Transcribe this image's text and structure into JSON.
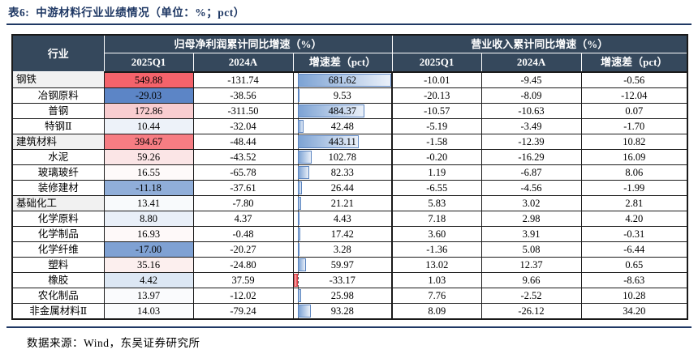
{
  "title": {
    "label": "表6:",
    "text": "中游材料行业业绩情况（单位：%；pct）"
  },
  "source": "数据来源：Wind，东吴证券研究所",
  "colors": {
    "header_bg": "#35485C",
    "accent_navy": "#1F3864",
    "parent_row_bg": "#F1F1F1",
    "bar_positive_start": "#7DA3D4",
    "bar_positive_end": "#EAF0F9",
    "bar_positive_border": "#5C85C0",
    "bar_negative_solid": "#E9494F",
    "bar_negative_border": "#D93A41",
    "heat_max_red": "#F4636B",
    "heat_min_blue": "#5C85C6"
  },
  "table": {
    "col_industry": "行业",
    "group1": "归母净利润累计同比增速（%）",
    "group2": "营业收入累计同比增速（%）",
    "subheaders": [
      "2025Q1",
      "2024A",
      "增速差（pct）",
      "2025Q1",
      "2024A",
      "增速差（pct）"
    ],
    "bar": {
      "min": -33.17,
      "max": 681.62
    },
    "rows": [
      {
        "industry": "钢铁",
        "level": "parent",
        "p_q1": "549.88",
        "p_q1_bg": "#F4636B",
        "p_2024": "-131.74",
        "p_diff": "681.62",
        "r_q1": "-10.01",
        "r_2024": "-9.45",
        "r_diff": "-0.56"
      },
      {
        "industry": "冶钢原料",
        "level": "child",
        "p_q1": "-29.03",
        "p_q1_bg": "#5C85C6",
        "p_2024": "-38.56",
        "p_diff": "9.53",
        "r_q1": "-20.13",
        "r_2024": "-8.09",
        "r_diff": "-12.04"
      },
      {
        "industry": "普钢",
        "level": "child",
        "p_q1": "172.86",
        "p_q1_bg": "#F9CDD0",
        "p_2024": "-311.50",
        "p_diff": "484.37",
        "r_q1": "-10.57",
        "r_2024": "-10.63",
        "r_diff": "0.07"
      },
      {
        "industry": "特钢Ⅱ",
        "level": "child",
        "p_q1": "10.44",
        "p_q1_bg": "#EDF2F9",
        "p_2024": "-32.04",
        "p_diff": "42.48",
        "r_q1": "-5.19",
        "r_2024": "-3.49",
        "r_diff": "-1.70"
      },
      {
        "industry": "建筑材料",
        "level": "parent",
        "p_q1": "394.67",
        "p_q1_bg": "#F67D83",
        "p_2024": "-48.44",
        "p_diff": "443.11",
        "r_q1": "-1.58",
        "r_2024": "-12.39",
        "r_diff": "10.82"
      },
      {
        "industry": "水泥",
        "level": "child",
        "p_q1": "59.26",
        "p_q1_bg": "#FBE5E6",
        "p_2024": "-43.52",
        "p_diff": "102.78",
        "r_q1": "-0.20",
        "r_2024": "-16.29",
        "r_diff": "16.09"
      },
      {
        "industry": "玻璃玻纤",
        "level": "child",
        "p_q1": "16.55",
        "p_q1_bg": "#FEFAFA",
        "p_2024": "-65.78",
        "p_diff": "82.33",
        "r_q1": "1.19",
        "r_2024": "-6.87",
        "r_diff": "8.06"
      },
      {
        "industry": "装修建材",
        "level": "child",
        "p_q1": "-11.18",
        "p_q1_bg": "#90AED9",
        "p_2024": "-37.61",
        "p_diff": "26.44",
        "r_q1": "-6.55",
        "r_2024": "-4.56",
        "r_diff": "-1.99"
      },
      {
        "industry": "基础化工",
        "level": "parent",
        "p_q1": "13.41",
        "p_q1_bg": "#F8FAFC",
        "p_2024": "-7.80",
        "p_diff": "21.21",
        "r_q1": "5.83",
        "r_2024": "3.02",
        "r_diff": "2.81"
      },
      {
        "industry": "化学原料",
        "level": "child",
        "p_q1": "8.80",
        "p_q1_bg": "#E9EFF8",
        "p_2024": "4.37",
        "p_diff": "4.43",
        "r_q1": "7.18",
        "r_2024": "2.98",
        "r_diff": "4.20"
      },
      {
        "industry": "化学制品",
        "level": "child",
        "p_q1": "16.93",
        "p_q1_bg": "#FEF9F9",
        "p_2024": "-0.48",
        "p_diff": "17.42",
        "r_q1": "3.60",
        "r_2024": "3.91",
        "r_diff": "-0.31"
      },
      {
        "industry": "化学纤维",
        "level": "child",
        "p_q1": "-17.00",
        "p_q1_bg": "#7FA1D3",
        "p_2024": "-20.27",
        "p_diff": "3.28",
        "r_q1": "-1.36",
        "r_2024": "5.08",
        "r_diff": "-6.44"
      },
      {
        "industry": "塑料",
        "level": "child",
        "p_q1": "35.16",
        "p_q1_bg": "#FCEFEE",
        "p_2024": "-24.80",
        "p_diff": "59.97",
        "r_q1": "13.02",
        "r_2024": "12.37",
        "r_diff": "0.65"
      },
      {
        "industry": "橡胶",
        "level": "child",
        "p_q1": "4.42",
        "p_q1_bg": "#DCE7F4",
        "p_2024": "37.59",
        "p_diff": "-33.17",
        "r_q1": "1.03",
        "r_2024": "9.66",
        "r_diff": "-8.63"
      },
      {
        "industry": "农化制品",
        "level": "child",
        "p_q1": "13.97",
        "p_q1_bg": "#FAFBFD",
        "p_2024": "-12.02",
        "p_diff": "25.98",
        "r_q1": "7.76",
        "r_2024": "-2.52",
        "r_diff": "10.28"
      },
      {
        "industry": "非金属材料Ⅱ",
        "level": "child",
        "p_q1": "14.03",
        "p_q1_bg": "#FBFCFD",
        "p_2024": "-79.24",
        "p_diff": "93.28",
        "r_q1": "8.09",
        "r_2024": "-26.12",
        "r_diff": "34.20"
      }
    ]
  }
}
